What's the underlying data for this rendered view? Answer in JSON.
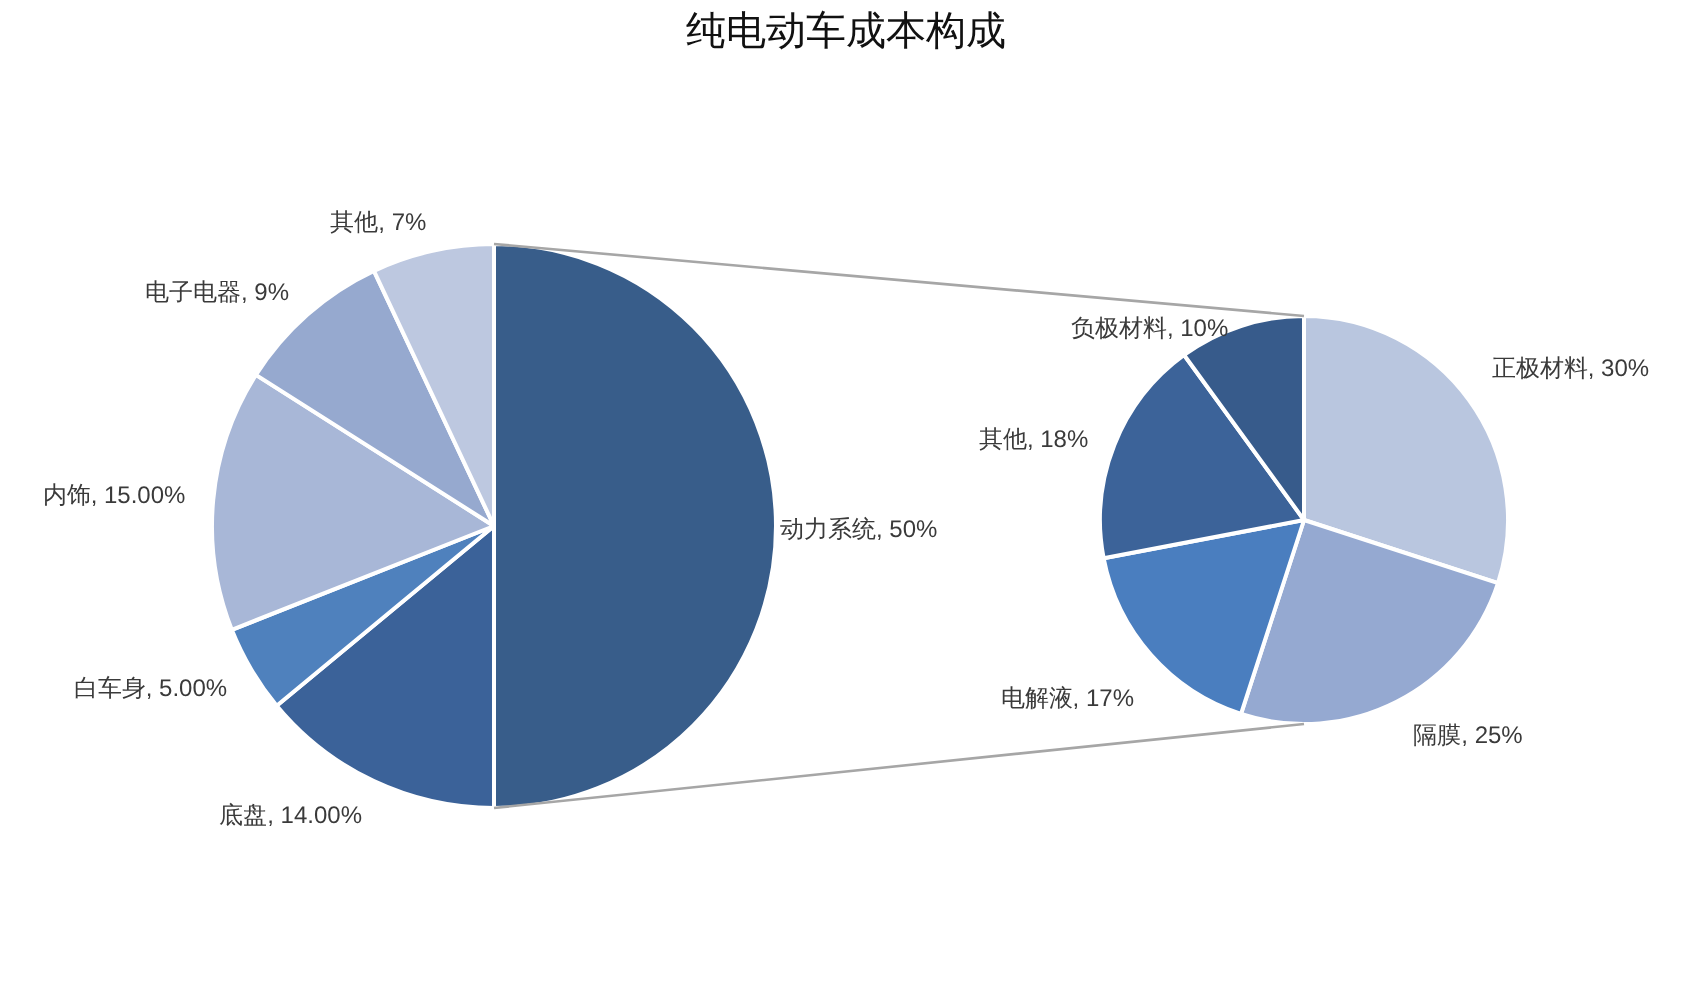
{
  "chart_data": [
    {
      "type": "pie",
      "title": "纯电动车成本构成",
      "categories": [
        "动力系统",
        "底盘",
        "白车身",
        "内饰",
        "电子电器",
        "其他"
      ],
      "values": [
        50,
        14,
        5,
        15,
        9,
        7
      ],
      "colors": [
        "#385d8a",
        "#3b6299",
        "#4f81bd",
        "#a8b7d7",
        "#96a9cf",
        "#bdc8e0"
      ],
      "value_labels": [
        "50%",
        "14.00%",
        "5.00%",
        "15.00%",
        "9%",
        "7%"
      ]
    },
    {
      "type": "pie",
      "categories": [
        "正极材料",
        "隔膜",
        "电解液",
        "其他",
        "负极材料"
      ],
      "values": [
        30,
        25,
        17,
        18,
        10
      ],
      "colors": [
        "#b9c6df",
        "#95a9d1",
        "#4a7ebf",
        "#3c6399",
        "#375b8b"
      ],
      "value_labels": [
        "30%",
        "25%",
        "17%",
        "18%",
        "10%"
      ]
    }
  ]
}
